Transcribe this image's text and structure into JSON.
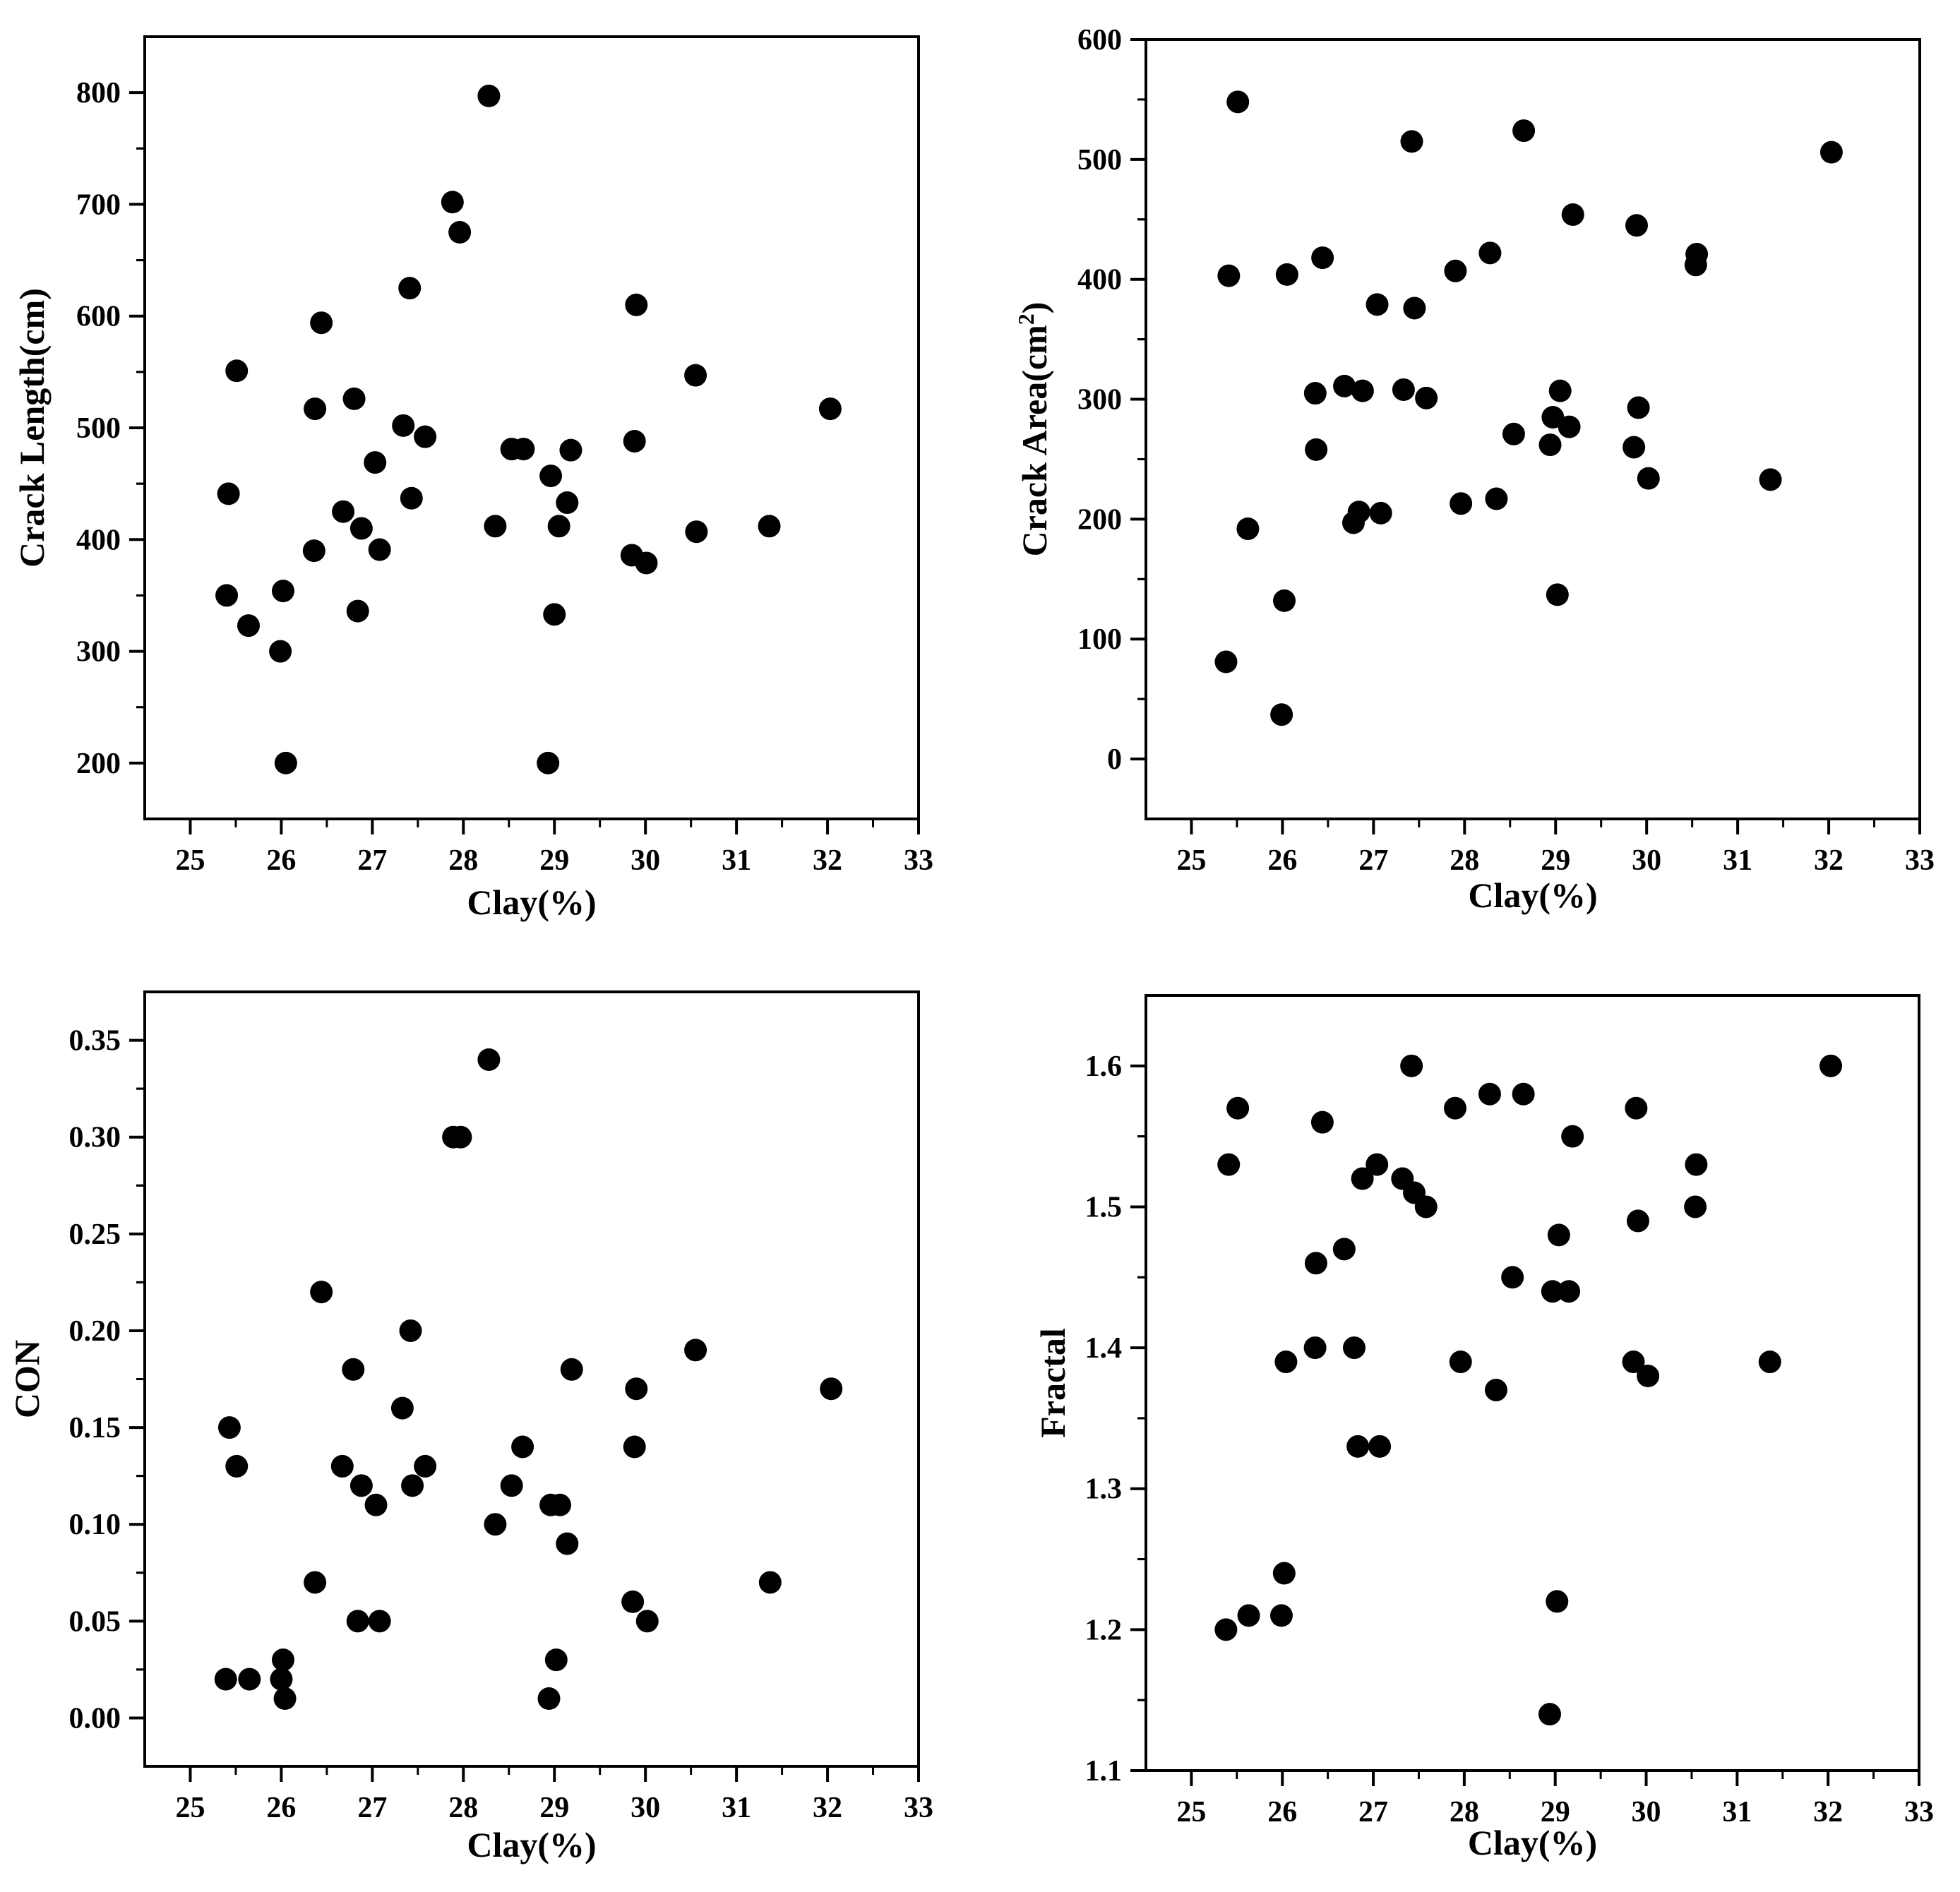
{
  "chart_data": [
    {
      "type": "scatter",
      "title": "",
      "xlabel": "Clay(%)",
      "ylabel": "Crack Length(cm)",
      "xlim": [
        24.5,
        33
      ],
      "ylim": [
        150,
        850
      ],
      "xticks": [
        25,
        26,
        27,
        28,
        29,
        30,
        31,
        32,
        33
      ],
      "yticks": [
        200,
        300,
        400,
        500,
        600,
        700,
        800
      ],
      "grid": false,
      "x": [
        25.4,
        25.42,
        25.51,
        25.64,
        25.99,
        26.02,
        26.05,
        26.36,
        26.37,
        26.44,
        26.68,
        26.8,
        26.84,
        26.88,
        27.03,
        27.08,
        27.34,
        27.41,
        27.43,
        27.58,
        27.88,
        27.96,
        28.28,
        28.35,
        28.53,
        28.66,
        28.93,
        28.96,
        29.0,
        29.05,
        29.14,
        29.18,
        29.85,
        29.88,
        29.9,
        30.01,
        30.55,
        30.56,
        31.36,
        32.03
      ],
      "y": [
        350,
        441,
        551,
        323,
        300,
        354,
        200,
        390,
        517,
        594,
        425,
        526,
        336,
        410,
        469,
        391,
        502,
        625,
        437,
        492,
        702,
        675,
        797,
        412,
        481,
        481,
        200,
        457,
        333,
        412,
        433,
        480,
        386,
        488,
        610,
        379,
        547,
        407,
        412,
        517
      ]
    },
    {
      "type": "scatter",
      "title": "",
      "xlabel": "Clay(%)",
      "ylabel": "Crack Area(cm",
      "ylabel_superscript": "2",
      "ylabel_suffix": ")",
      "xlim": [
        24.5,
        33
      ],
      "ylim": [
        -50,
        600
      ],
      "xticks": [
        25,
        26,
        27,
        28,
        29,
        30,
        31,
        32,
        33
      ],
      "yticks": [
        0,
        100,
        200,
        300,
        400,
        500,
        600
      ],
      "grid": false,
      "x": [
        25.38,
        25.41,
        25.51,
        25.62,
        25.99,
        26.02,
        26.05,
        26.36,
        26.37,
        26.44,
        26.68,
        26.78,
        26.84,
        26.88,
        27.04,
        27.08,
        27.33,
        27.42,
        27.45,
        27.58,
        27.9,
        27.96,
        28.28,
        28.35,
        28.54,
        28.65,
        28.94,
        28.97,
        29.02,
        29.05,
        29.15,
        29.19,
        29.86,
        29.89,
        29.91,
        30.02,
        30.54,
        30.55,
        31.36,
        32.03
      ],
      "y": [
        81,
        403,
        548,
        192,
        37,
        132,
        404,
        305,
        258,
        418,
        311,
        197,
        206,
        307,
        379,
        205,
        308,
        515,
        376,
        301,
        407,
        213,
        422,
        217,
        271,
        524,
        262,
        285,
        137,
        307,
        277,
        454,
        260,
        445,
        293,
        234,
        412,
        421,
        233,
        506
      ]
    },
    {
      "type": "scatter",
      "title": "",
      "xlabel": "Clay(%)",
      "ylabel": "CON",
      "xlim": [
        24.5,
        33
      ],
      "ylim": [
        -0.025,
        0.375
      ],
      "xticks": [
        25,
        26,
        27,
        28,
        29,
        30,
        31,
        32,
        33
      ],
      "yticks": [
        "0.00",
        "0.05",
        "0.10",
        "0.15",
        "0.20",
        "0.25",
        "0.30",
        "0.35"
      ],
      "grid": false,
      "x": [
        25.39,
        25.43,
        25.51,
        25.65,
        26.0,
        26.02,
        26.04,
        26.37,
        26.44,
        26.67,
        26.79,
        26.84,
        26.88,
        27.04,
        27.08,
        27.33,
        27.42,
        27.44,
        27.58,
        27.89,
        27.97,
        28.28,
        28.35,
        28.53,
        28.65,
        28.94,
        28.96,
        29.02,
        29.06,
        29.14,
        29.19,
        29.86,
        29.88,
        29.9,
        30.02,
        30.55,
        31.37,
        32.04
      ],
      "y": [
        0.02,
        0.15,
        0.13,
        0.02,
        0.02,
        0.03,
        0.01,
        0.07,
        0.22,
        0.13,
        0.18,
        0.05,
        0.12,
        0.11,
        0.05,
        0.16,
        0.2,
        0.12,
        0.13,
        0.3,
        0.3,
        0.34,
        0.1,
        0.12,
        0.14,
        0.01,
        0.11,
        0.03,
        0.11,
        0.09,
        0.18,
        0.06,
        0.14,
        0.17,
        0.05,
        0.19,
        0.07,
        0.17
      ]
    },
    {
      "type": "scatter",
      "title": "",
      "xlabel": "Clay(%)",
      "ylabel": "Fractal",
      "xlim": [
        24.5,
        33
      ],
      "ylim": [
        1.1,
        1.65
      ],
      "xticks": [
        25,
        26,
        27,
        28,
        29,
        30,
        31,
        32,
        33
      ],
      "yticks": [
        "1.1",
        "1.2",
        "1.3",
        "1.4",
        "1.5",
        "1.6"
      ],
      "grid": false,
      "x": [
        25.38,
        25.41,
        25.51,
        25.63,
        25.99,
        26.02,
        26.04,
        26.36,
        26.37,
        26.44,
        26.68,
        26.79,
        26.83,
        26.88,
        27.04,
        27.07,
        27.32,
        27.42,
        27.45,
        27.58,
        27.9,
        27.96,
        28.28,
        28.35,
        28.53,
        28.65,
        28.94,
        28.97,
        29.02,
        29.04,
        29.15,
        29.19,
        29.86,
        29.89,
        29.91,
        30.02,
        30.54,
        30.55,
        31.36,
        32.03
      ],
      "y": [
        1.2,
        1.53,
        1.57,
        1.21,
        1.21,
        1.24,
        1.39,
        1.4,
        1.46,
        1.56,
        1.47,
        1.4,
        1.33,
        1.52,
        1.53,
        1.33,
        1.52,
        1.6,
        1.51,
        1.5,
        1.57,
        1.39,
        1.58,
        1.37,
        1.45,
        1.58,
        1.14,
        1.44,
        1.22,
        1.48,
        1.44,
        1.55,
        1.39,
        1.57,
        1.49,
        1.38,
        1.5,
        1.53,
        1.39,
        1.6
      ]
    }
  ]
}
